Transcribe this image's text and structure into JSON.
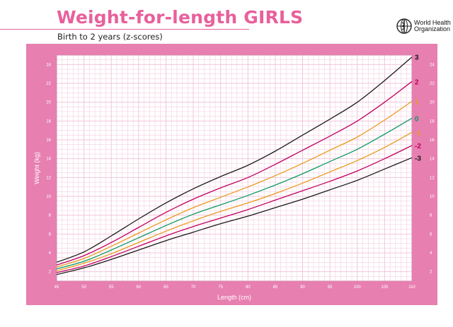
{
  "header": {
    "title": "Weight-for-length GIRLS",
    "subtitle": "Birth to 2 years (z-scores)",
    "org_name_line1": "World Health",
    "org_name_line2": "Organization",
    "logo_icon": "who-emblem-icon"
  },
  "colors": {
    "title": "#e8609b",
    "panel": "#e77fb0",
    "grid": "#f2c6db",
    "z_3": "#1a1a1a",
    "z_2": "#c0005f",
    "z_1": "#e89a1c",
    "z_0": "#0b9a62",
    "z_neg1": "#e89a1c",
    "z_neg2": "#c0005f",
    "z_neg3": "#1a1a1a"
  },
  "chart_data": {
    "type": "line",
    "title": "Weight-for-length GIRLS",
    "subtitle": "Birth to 2 years (z-scores)",
    "xlabel": "Length (cm)",
    "ylabel": "Weight (kg)",
    "xlim": [
      45,
      110
    ],
    "ylim": [
      1,
      25
    ],
    "x_ticks": [
      45,
      50,
      55,
      60,
      65,
      70,
      75,
      80,
      85,
      90,
      95,
      100,
      105,
      110
    ],
    "y_ticks": [
      2,
      4,
      6,
      8,
      10,
      12,
      14,
      16,
      18,
      20,
      22,
      24
    ],
    "grid": true,
    "x": [
      45,
      50,
      55,
      60,
      65,
      70,
      75,
      80,
      85,
      90,
      95,
      100,
      105,
      110
    ],
    "series": [
      {
        "name": "3",
        "color_key": "z_3",
        "values": [
          3.0,
          4.1,
          5.8,
          7.6,
          9.3,
          10.8,
          12.1,
          13.3,
          14.8,
          16.5,
          18.2,
          20.0,
          22.3,
          24.8
        ]
      },
      {
        "name": "2",
        "color_key": "z_2",
        "values": [
          2.7,
          3.7,
          5.1,
          6.7,
          8.3,
          9.7,
          10.9,
          12.0,
          13.4,
          14.9,
          16.4,
          18.0,
          20.0,
          22.2
        ]
      },
      {
        "name": "1",
        "color_key": "z_1",
        "values": [
          2.5,
          3.4,
          4.7,
          6.1,
          7.5,
          8.8,
          9.9,
          11.0,
          12.2,
          13.5,
          14.9,
          16.3,
          18.1,
          20.1
        ]
      },
      {
        "name": "0",
        "color_key": "z_0",
        "values": [
          2.3,
          3.1,
          4.3,
          5.6,
          6.9,
          8.1,
          9.1,
          10.1,
          11.2,
          12.4,
          13.7,
          15.0,
          16.6,
          18.3
        ]
      },
      {
        "name": "-1",
        "color_key": "z_neg1",
        "values": [
          2.1,
          2.9,
          3.9,
          5.1,
          6.3,
          7.4,
          8.4,
          9.3,
          10.3,
          11.4,
          12.6,
          13.8,
          15.2,
          16.8
        ]
      },
      {
        "name": "-2",
        "color_key": "z_neg2",
        "values": [
          1.9,
          2.6,
          3.6,
          4.7,
          5.8,
          6.8,
          7.7,
          8.6,
          9.6,
          10.6,
          11.6,
          12.7,
          14.0,
          15.4
        ]
      },
      {
        "name": "-3",
        "color_key": "z_neg3",
        "values": [
          1.7,
          2.4,
          3.3,
          4.3,
          5.3,
          6.2,
          7.1,
          7.9,
          8.8,
          9.7,
          10.7,
          11.7,
          12.9,
          14.1
        ]
      }
    ]
  }
}
